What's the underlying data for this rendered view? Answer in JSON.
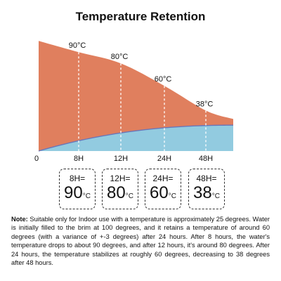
{
  "title": "Temperature Retention",
  "chart_data": {
    "type": "area",
    "title": "Temperature Retention",
    "x": [
      0,
      8,
      12,
      24,
      48
    ],
    "x_tick_labels": [
      "0",
      "8H",
      "12H",
      "24H",
      "48H"
    ],
    "series": [
      {
        "values": [
          100,
          90,
          80,
          60,
          38
        ],
        "color": "#E07F5E"
      },
      {
        "values": [
          25,
          25,
          25,
          25,
          25
        ],
        "color": "#92CBE0"
      }
    ],
    "annotations": [
      "90°C",
      "80°C",
      "60°C",
      "38°C"
    ],
    "grid": false
  },
  "boxes": [
    {
      "key": "8H=",
      "value": "90",
      "unit": "°C"
    },
    {
      "key": "12H=",
      "value": "80",
      "unit": "°C"
    },
    {
      "key": "24H=",
      "value": "60",
      "unit": "°C"
    },
    {
      "key": "48H=",
      "value": "38",
      "unit": "°C"
    }
  ],
  "note": {
    "label": "Note:",
    "text": " Suitable only for Indoor use with a temperature is approximately 25 degrees. Water is initially filled to the brim at 100 degrees, and it retains a temperature of around 60 degrees (with a variance of +-3 degrees) after 24 hours. After 8 hours, the water's temperature drops to about 90 degrees, and after 12 hours, it's around 80 degrees. After 24 hours, the temperature stabilizes at roughly 60 degrees, decreasing to 38 degrees after 48 hours."
  }
}
